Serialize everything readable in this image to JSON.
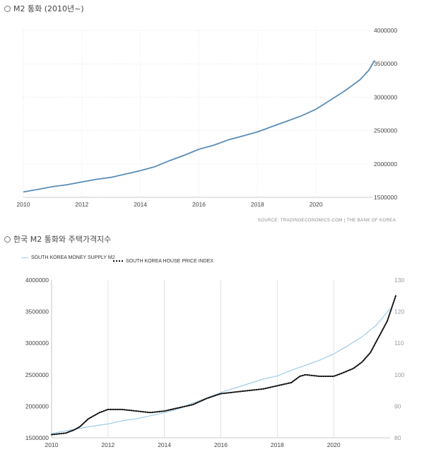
{
  "titles": {
    "chart1": "M2 통화 (2010년~)",
    "chart2": "한국 M2 통화와 주택가격지수"
  },
  "source": "SOURCE: TRADINGECONOMICS.COM  |  THE BANK OF KOREA",
  "colors": {
    "m2_dark": "#5b8db8",
    "m2_light": "#9ecbe8",
    "hpi": "#111111",
    "grid": "#d8d8d8",
    "axis_text": "#444444"
  },
  "chart_data": [
    {
      "type": "line",
      "x_ticks": [
        "2010",
        "2012",
        "2014",
        "2016",
        "2018",
        "2020"
      ],
      "y_ticks": [
        "1500000",
        "2000000",
        "2500000",
        "3000000",
        "3500000",
        "4000000"
      ],
      "xlim": [
        2010,
        2022
      ],
      "ylim": [
        1500000,
        4000000
      ],
      "grid": "vertical dotted + horizontal",
      "series": [
        {
          "name": "",
          "points": [
            [
              2010.0,
              1580000
            ],
            [
              2010.5,
              1620000
            ],
            [
              2011.0,
              1660000
            ],
            [
              2011.5,
              1690000
            ],
            [
              2012.0,
              1730000
            ],
            [
              2012.5,
              1770000
            ],
            [
              2013.0,
              1800000
            ],
            [
              2013.5,
              1850000
            ],
            [
              2014.0,
              1900000
            ],
            [
              2014.5,
              1960000
            ],
            [
              2015.0,
              2050000
            ],
            [
              2015.5,
              2130000
            ],
            [
              2016.0,
              2220000
            ],
            [
              2016.5,
              2280000
            ],
            [
              2017.0,
              2360000
            ],
            [
              2017.5,
              2420000
            ],
            [
              2018.0,
              2480000
            ],
            [
              2018.5,
              2560000
            ],
            [
              2019.0,
              2640000
            ],
            [
              2019.5,
              2720000
            ],
            [
              2020.0,
              2820000
            ],
            [
              2020.5,
              2960000
            ],
            [
              2021.0,
              3100000
            ],
            [
              2021.5,
              3260000
            ],
            [
              2021.8,
              3400000
            ],
            [
              2022.0,
              3550000
            ]
          ]
        }
      ]
    },
    {
      "type": "line",
      "x_ticks": [
        "2010",
        "2012",
        "2014",
        "2016",
        "2018",
        "2020"
      ],
      "y_left_ticks": [
        "1500000",
        "2000000",
        "2500000",
        "3000000",
        "3500000",
        "4000000"
      ],
      "y_right_ticks": [
        "80",
        "90",
        "100",
        "110",
        "120",
        "130"
      ],
      "xlim": [
        2010,
        2022
      ],
      "ylim_left": [
        1500000,
        4000000
      ],
      "ylim_right": [
        80,
        130
      ],
      "legend": "top-left",
      "series": [
        {
          "name": "SOUTH KOREA MONEY SUPPLY M2",
          "axis": "left",
          "style": "solid",
          "points": [
            [
              2010.0,
              1570000
            ],
            [
              2010.5,
              1610000
            ],
            [
              2011.0,
              1650000
            ],
            [
              2011.5,
              1690000
            ],
            [
              2012.0,
              1720000
            ],
            [
              2012.5,
              1770000
            ],
            [
              2013.0,
              1800000
            ],
            [
              2013.5,
              1850000
            ],
            [
              2014.0,
              1900000
            ],
            [
              2014.5,
              1960000
            ],
            [
              2015.0,
              2050000
            ],
            [
              2015.5,
              2130000
            ],
            [
              2016.0,
              2220000
            ],
            [
              2016.5,
              2290000
            ],
            [
              2017.0,
              2360000
            ],
            [
              2017.5,
              2430000
            ],
            [
              2018.0,
              2480000
            ],
            [
              2018.5,
              2570000
            ],
            [
              2019.0,
              2650000
            ],
            [
              2019.5,
              2730000
            ],
            [
              2020.0,
              2830000
            ],
            [
              2020.5,
              2960000
            ],
            [
              2021.0,
              3100000
            ],
            [
              2021.5,
              3280000
            ],
            [
              2022.0,
              3550000
            ]
          ]
        },
        {
          "name": "SOUTH KOREA HOUSE PRICE INDEX",
          "axis": "right",
          "style": "dotted",
          "points": [
            [
              2010.0,
              81
            ],
            [
              2010.5,
              81.5
            ],
            [
              2010.8,
              82.5
            ],
            [
              2011.0,
              83.5
            ],
            [
              2011.3,
              86
            ],
            [
              2011.7,
              88
            ],
            [
              2012.0,
              89
            ],
            [
              2012.5,
              89
            ],
            [
              2013.0,
              88.5
            ],
            [
              2013.5,
              88
            ],
            [
              2014.0,
              88.5
            ],
            [
              2014.5,
              89.5
            ],
            [
              2015.0,
              90.5
            ],
            [
              2015.5,
              92.5
            ],
            [
              2016.0,
              94
            ],
            [
              2016.5,
              94.5
            ],
            [
              2017.0,
              95
            ],
            [
              2017.5,
              95.5
            ],
            [
              2018.0,
              96.5
            ],
            [
              2018.5,
              97.5
            ],
            [
              2018.8,
              99.5
            ],
            [
              2019.0,
              100
            ],
            [
              2019.5,
              99.5
            ],
            [
              2020.0,
              99.5
            ],
            [
              2020.3,
              100.5
            ],
            [
              2020.7,
              102
            ],
            [
              2021.0,
              104
            ],
            [
              2021.3,
              107
            ],
            [
              2021.6,
              112
            ],
            [
              2021.9,
              117
            ],
            [
              2022.2,
              125
            ]
          ]
        }
      ]
    }
  ]
}
